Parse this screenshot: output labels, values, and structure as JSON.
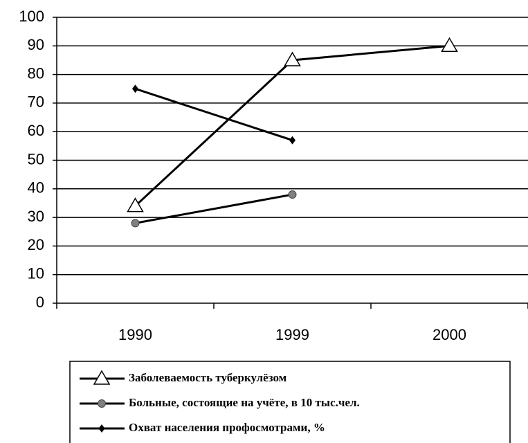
{
  "chart_data": {
    "type": "line",
    "categories": [
      "1990",
      "1999",
      "2000"
    ],
    "series": [
      {
        "name": "Заболеваемость туберкулёзом",
        "color": "#000000",
        "marker": "triangle",
        "marker_color": "#ffffff",
        "values": [
          34,
          85,
          90
        ]
      },
      {
        "name": "Больные, состоящие на учёте, в 10 тыс.чел.",
        "color": "#000000",
        "marker": "circle",
        "marker_color": "#808080",
        "values": [
          28,
          38,
          null
        ]
      },
      {
        "name": "Охват населения профосмотрами, %",
        "color": "#000000",
        "marker": "diamond",
        "marker_color": "#000000",
        "values": [
          75,
          57,
          null
        ]
      }
    ],
    "ylim": [
      0,
      100
    ],
    "yticks": [
      0,
      10,
      20,
      30,
      40,
      50,
      60,
      70,
      80,
      90,
      100
    ],
    "grid": true,
    "legend": "bottom"
  }
}
